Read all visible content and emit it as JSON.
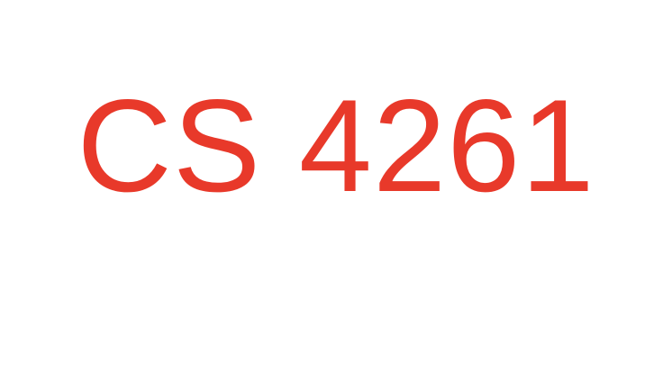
{
  "slide": {
    "title": "CS 4261",
    "title_color": "#e8392a",
    "background_color": "#ffffff"
  }
}
